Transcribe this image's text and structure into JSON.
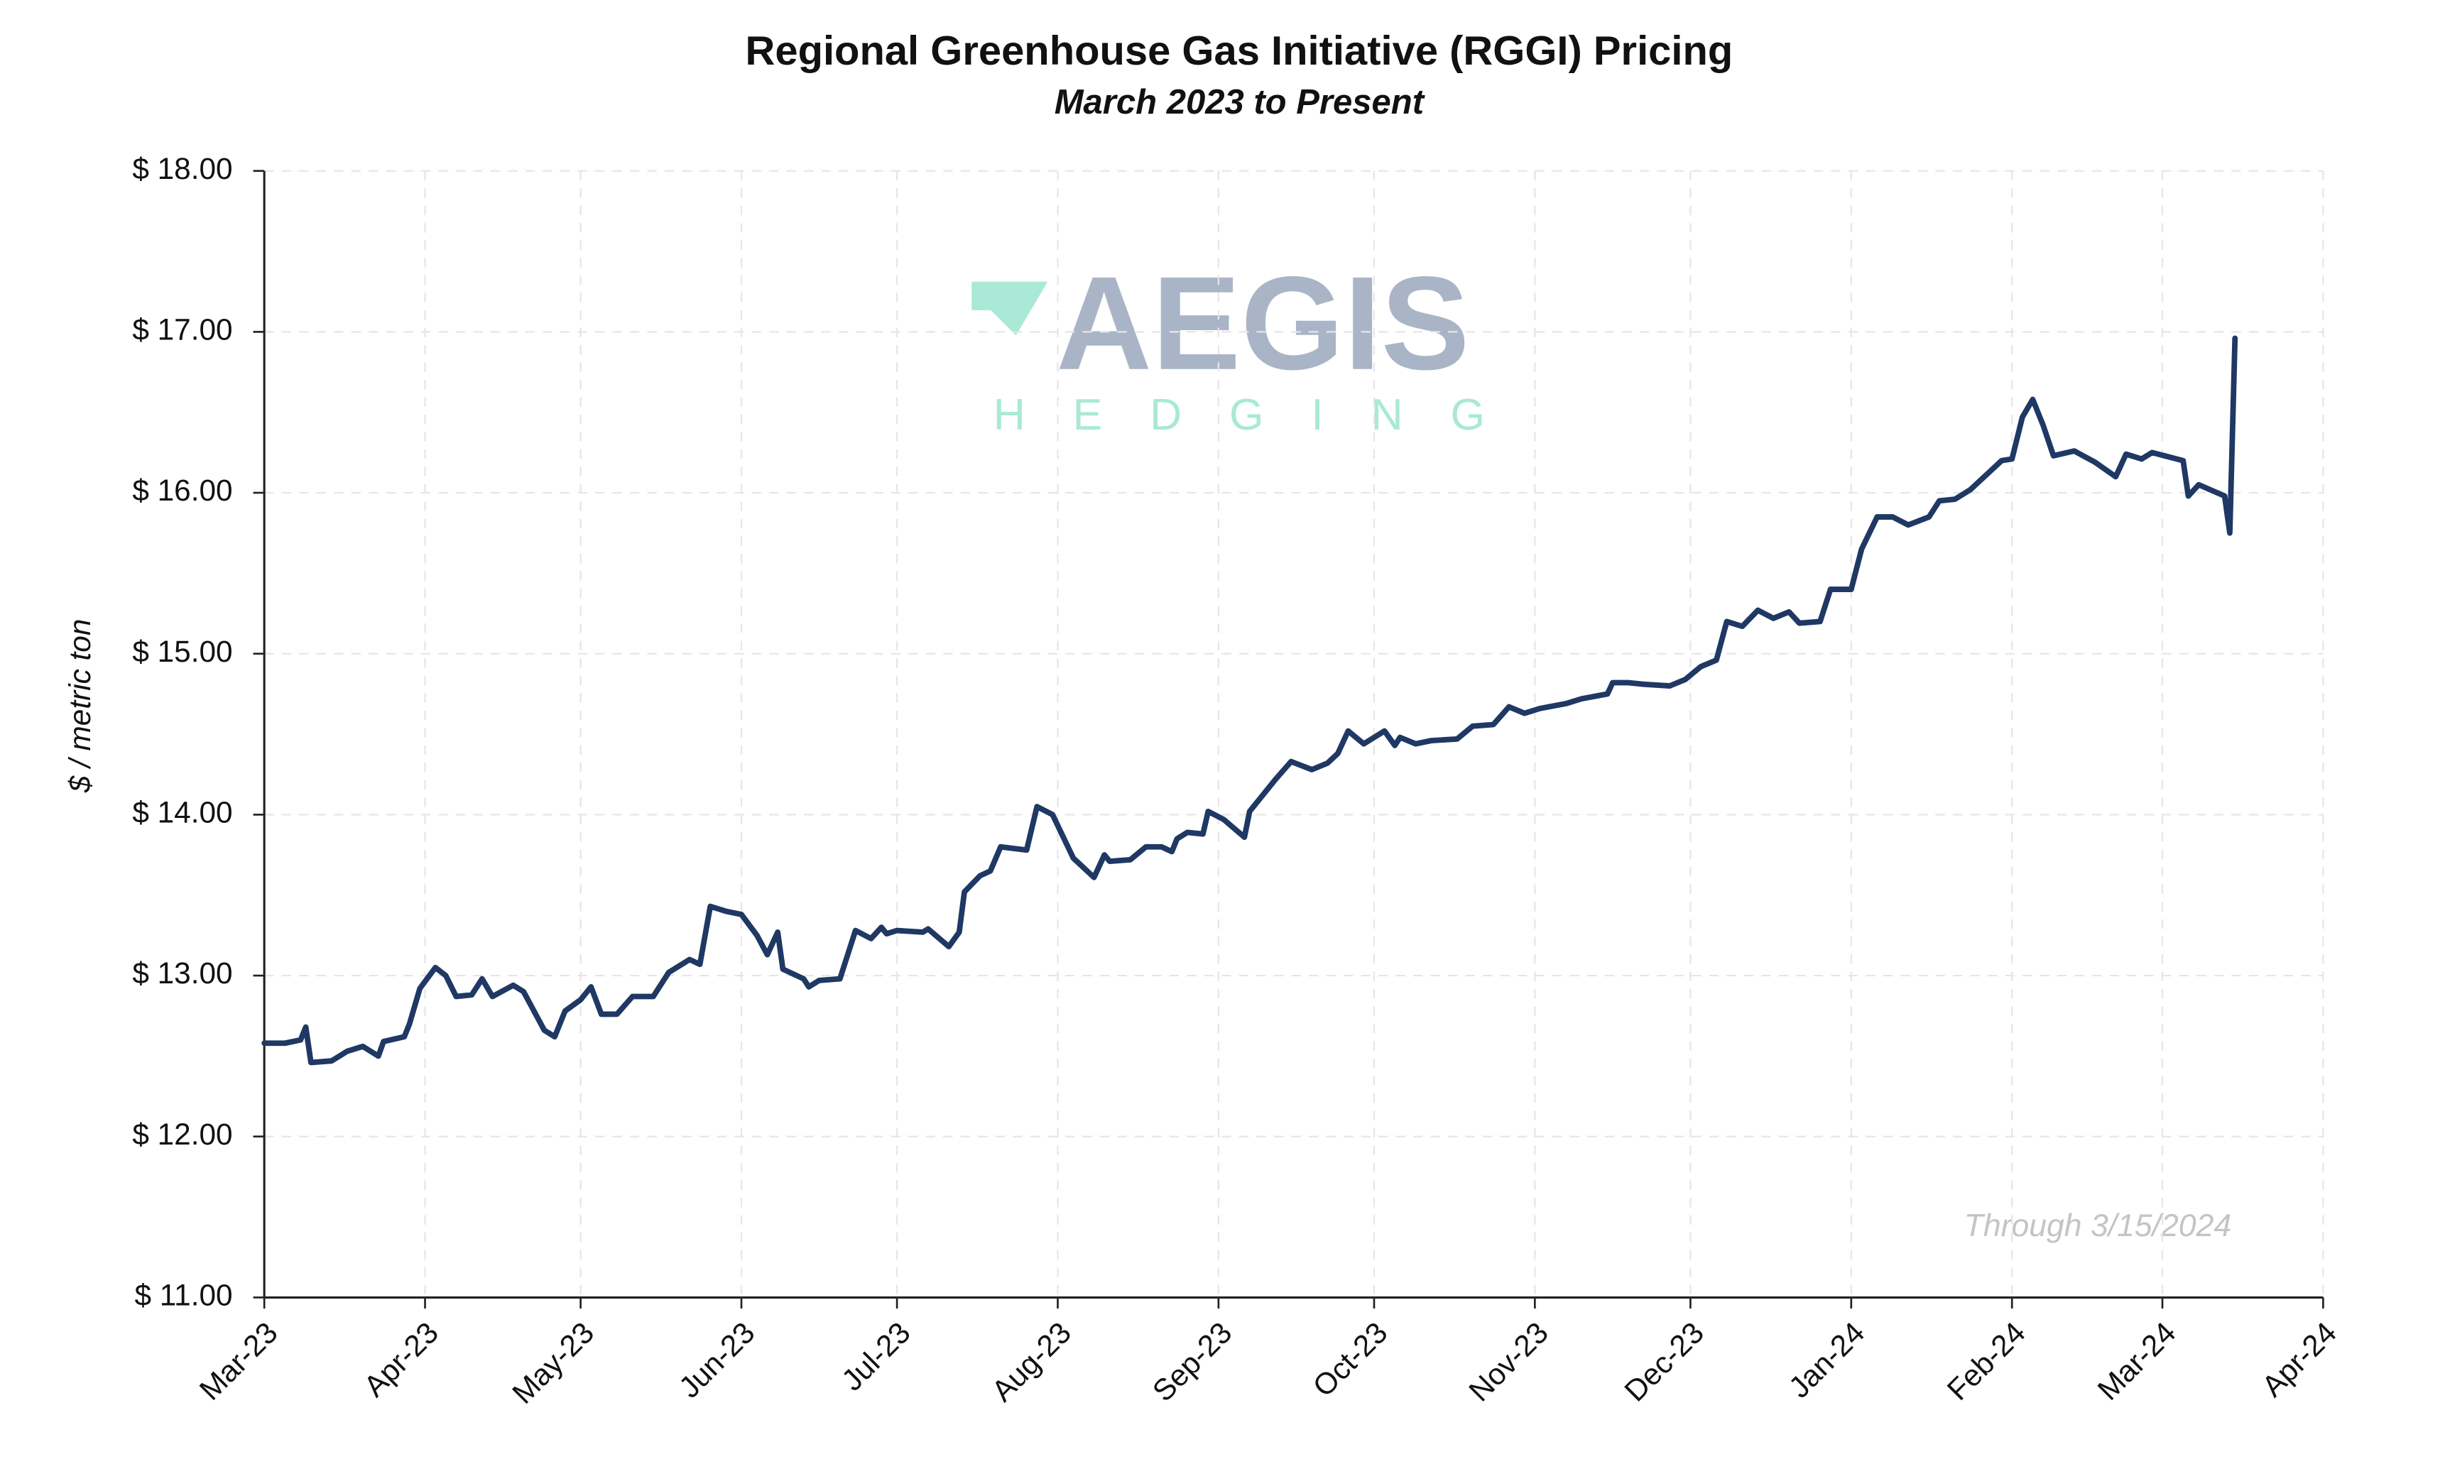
{
  "chart_data": {
    "type": "line",
    "title": "Regional Greenhouse Gas Initiative (RGGI) Pricing",
    "subtitle": "March 2023 to Present",
    "y_label": "$ / metric ton",
    "annotation": "Through 3/15/2024",
    "logo_text": "AEGIS",
    "logo_subtext": "HEDGING",
    "color": "#1f3864",
    "grid": true,
    "xlim": [
      0,
      397
    ],
    "xticks": [
      {
        "value": 0,
        "label": "Mar-23"
      },
      {
        "value": 31,
        "label": "Apr-23"
      },
      {
        "value": 61,
        "label": "May-23"
      },
      {
        "value": 92,
        "label": "Jun-23"
      },
      {
        "value": 122,
        "label": "Jul-23"
      },
      {
        "value": 153,
        "label": "Aug-23"
      },
      {
        "value": 184,
        "label": "Sep-23"
      },
      {
        "value": 214,
        "label": "Oct-23"
      },
      {
        "value": 245,
        "label": "Nov-23"
      },
      {
        "value": 275,
        "label": "Dec-23"
      },
      {
        "value": 306,
        "label": "Jan-24"
      },
      {
        "value": 337,
        "label": "Feb-24"
      },
      {
        "value": 366,
        "label": "Mar-24"
      },
      {
        "value": 397,
        "label": "Apr-24"
      }
    ],
    "ylim": [
      11,
      18
    ],
    "yticks": [
      {
        "value": 11,
        "label": "$ 11.00"
      },
      {
        "value": 12,
        "label": "$ 12.00"
      },
      {
        "value": 13,
        "label": "$ 13.00"
      },
      {
        "value": 14,
        "label": "$ 14.00"
      },
      {
        "value": 15,
        "label": "$ 15.00"
      },
      {
        "value": 16,
        "label": "$ 16.00"
      },
      {
        "value": 17,
        "label": "$ 17.00"
      },
      {
        "value": 18,
        "label": "$ 18.00"
      }
    ],
    "x": [
      0,
      4,
      7,
      8,
      9,
      13,
      16,
      19,
      22,
      23,
      27,
      28,
      30,
      33,
      35,
      37,
      40,
      42,
      44,
      48,
      50,
      52,
      54,
      56,
      58,
      61,
      63,
      65,
      68,
      71,
      75,
      78,
      82,
      84,
      86,
      89,
      92,
      95,
      97,
      99,
      100,
      104,
      105,
      107,
      111,
      114,
      117,
      119,
      120,
      122,
      127,
      128,
      132,
      134,
      135,
      138,
      140,
      142,
      147,
      149,
      152,
      156,
      157,
      160,
      162,
      163,
      167,
      170,
      173,
      175,
      176,
      178,
      181,
      182,
      185,
      189,
      190,
      192,
      195,
      198,
      202,
      205,
      207,
      209,
      212,
      216,
      218,
      219,
      222,
      225,
      230,
      233,
      237,
      240,
      243,
      246,
      251,
      254,
      259,
      260,
      263,
      266,
      271,
      274,
      277,
      280,
      282,
      285,
      288,
      291,
      294,
      296,
      300,
      302,
      306,
      308,
      311,
      314,
      317,
      321,
      323,
      326,
      329,
      335,
      337,
      339,
      341,
      343,
      345,
      349,
      353,
      357,
      359,
      362,
      364,
      370,
      371,
      373,
      378,
      379,
      380
    ],
    "values": [
      12.58,
      12.58,
      12.6,
      12.68,
      12.46,
      12.47,
      12.53,
      12.56,
      12.5,
      12.59,
      12.62,
      12.7,
      12.92,
      13.05,
      13.0,
      12.87,
      12.88,
      12.98,
      12.87,
      12.94,
      12.9,
      12.78,
      12.66,
      12.62,
      12.78,
      12.85,
      12.93,
      12.76,
      12.76,
      12.87,
      12.87,
      13.02,
      13.1,
      13.07,
      13.43,
      13.4,
      13.38,
      13.25,
      13.13,
      13.27,
      13.04,
      12.98,
      12.93,
      12.97,
      12.98,
      13.28,
      13.23,
      13.3,
      13.26,
      13.28,
      13.27,
      13.29,
      13.18,
      13.27,
      13.52,
      13.62,
      13.65,
      13.8,
      13.78,
      14.05,
      14.0,
      13.73,
      13.7,
      13.61,
      13.75,
      13.71,
      13.72,
      13.8,
      13.8,
      13.77,
      13.85,
      13.89,
      13.88,
      14.02,
      13.97,
      13.86,
      14.02,
      14.1,
      14.22,
      14.33,
      14.28,
      14.32,
      14.38,
      14.52,
      14.44,
      14.52,
      14.43,
      14.48,
      14.44,
      14.46,
      14.47,
      14.55,
      14.56,
      14.67,
      14.63,
      14.66,
      14.69,
      14.72,
      14.75,
      14.82,
      14.82,
      14.81,
      14.8,
      14.84,
      14.92,
      14.96,
      15.2,
      15.17,
      15.27,
      15.22,
      15.26,
      15.19,
      15.2,
      15.4,
      15.4,
      15.65,
      15.85,
      15.85,
      15.8,
      15.85,
      15.95,
      15.96,
      16.02,
      16.2,
      16.21,
      16.47,
      16.58,
      16.42,
      16.23,
      16.26,
      16.19,
      16.1,
      16.24,
      16.21,
      16.25,
      16.2,
      15.98,
      16.05,
      15.98,
      15.75,
      16.96
    ]
  }
}
